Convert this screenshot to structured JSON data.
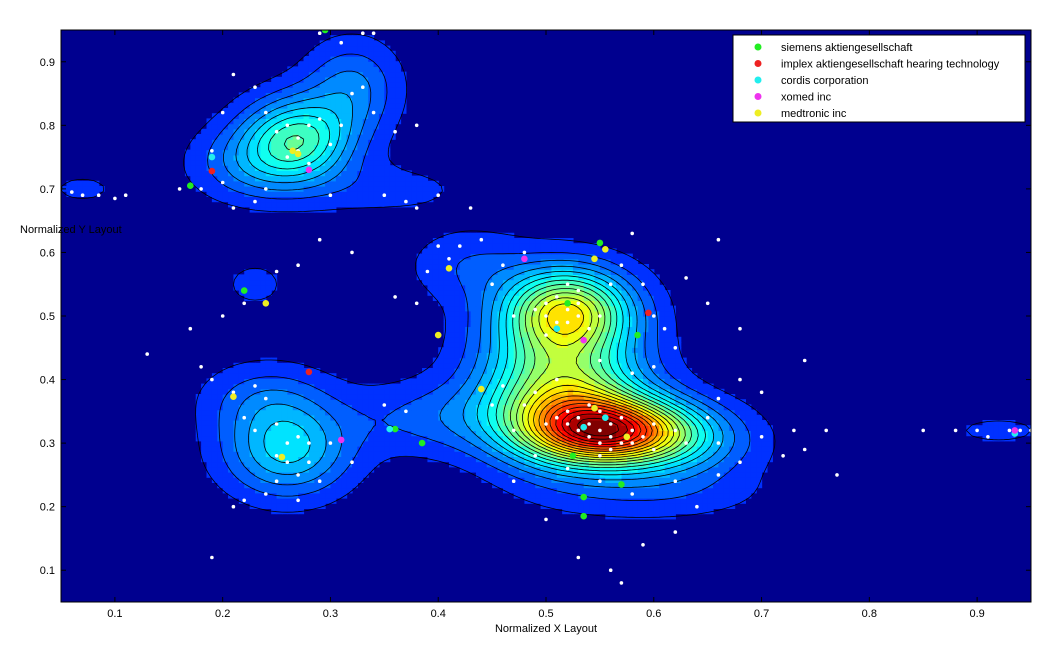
{
  "chart_data": {
    "type": "contour-scatter",
    "xlabel": "Normalized X Layout",
    "ylabel": "Normalized Y Layout",
    "xlim": [
      0.05,
      0.95
    ],
    "ylim": [
      0.05,
      0.95
    ],
    "x_ticks": [
      0.1,
      0.2,
      0.3,
      0.4,
      0.5,
      0.6,
      0.7,
      0.8,
      0.9
    ],
    "y_ticks": [
      0.1,
      0.2,
      0.3,
      0.4,
      0.5,
      0.6,
      0.7,
      0.8,
      0.9
    ],
    "x_tick_labels": [
      "0.1",
      "0.2",
      "0.3",
      "0.4",
      "0.5",
      "0.6",
      "0.7",
      "0.8",
      "0.9"
    ],
    "y_tick_labels": [
      "0.1",
      "0.2",
      "0.3",
      "0.4",
      "0.5",
      "0.6",
      "0.7",
      "0.8",
      "0.9"
    ],
    "legend_position": "top-right",
    "density_peaks": [
      {
        "x": 0.56,
        "y": 0.32,
        "height": 1.0,
        "sx": 0.05,
        "sy": 0.035
      },
      {
        "x": 0.52,
        "y": 0.35,
        "height": 0.55,
        "sx": 0.05,
        "sy": 0.06
      },
      {
        "x": 0.52,
        "y": 0.51,
        "height": 0.72,
        "sx": 0.04,
        "sy": 0.045
      },
      {
        "x": 0.51,
        "y": 0.43,
        "height": 0.38,
        "sx": 0.05,
        "sy": 0.07
      },
      {
        "x": 0.62,
        "y": 0.3,
        "height": 0.25,
        "sx": 0.05,
        "sy": 0.04
      },
      {
        "x": 0.27,
        "y": 0.78,
        "height": 0.5,
        "sx": 0.035,
        "sy": 0.045
      },
      {
        "x": 0.23,
        "y": 0.74,
        "height": 0.2,
        "sx": 0.04,
        "sy": 0.04
      },
      {
        "x": 0.32,
        "y": 0.86,
        "height": 0.22,
        "sx": 0.03,
        "sy": 0.05
      },
      {
        "x": 0.26,
        "y": 0.29,
        "height": 0.38,
        "sx": 0.04,
        "sy": 0.05
      },
      {
        "x": 0.24,
        "y": 0.37,
        "height": 0.15,
        "sx": 0.04,
        "sy": 0.04
      },
      {
        "x": 0.07,
        "y": 0.7,
        "height": 0.09,
        "sx": 0.02,
        "sy": 0.015
      },
      {
        "x": 0.92,
        "y": 0.32,
        "height": 0.09,
        "sx": 0.03,
        "sy": 0.015
      },
      {
        "x": 0.23,
        "y": 0.55,
        "height": 0.09,
        "sx": 0.02,
        "sy": 0.025
      },
      {
        "x": 0.43,
        "y": 0.58,
        "height": 0.12,
        "sx": 0.04,
        "sy": 0.04
      },
      {
        "x": 0.4,
        "y": 0.34,
        "height": 0.15,
        "sx": 0.06,
        "sy": 0.04
      },
      {
        "x": 0.6,
        "y": 0.22,
        "height": 0.1,
        "sx": 0.07,
        "sy": 0.03
      },
      {
        "x": 0.35,
        "y": 0.7,
        "height": 0.08,
        "sx": 0.06,
        "sy": 0.03
      }
    ],
    "background_points": [
      [
        0.07,
        0.69
      ],
      [
        0.06,
        0.695
      ],
      [
        0.085,
        0.69
      ],
      [
        0.1,
        0.685
      ],
      [
        0.18,
        0.7
      ],
      [
        0.2,
        0.71
      ],
      [
        0.19,
        0.76
      ],
      [
        0.2,
        0.82
      ],
      [
        0.21,
        0.88
      ],
      [
        0.23,
        0.86
      ],
      [
        0.24,
        0.82
      ],
      [
        0.25,
        0.79
      ],
      [
        0.26,
        0.8
      ],
      [
        0.27,
        0.78
      ],
      [
        0.28,
        0.8
      ],
      [
        0.29,
        0.81
      ],
      [
        0.27,
        0.76
      ],
      [
        0.26,
        0.75
      ],
      [
        0.28,
        0.74
      ],
      [
        0.3,
        0.77
      ],
      [
        0.31,
        0.8
      ],
      [
        0.32,
        0.85
      ],
      [
        0.33,
        0.86
      ],
      [
        0.31,
        0.93
      ],
      [
        0.33,
        0.945
      ],
      [
        0.34,
        0.945
      ],
      [
        0.29,
        0.945
      ],
      [
        0.34,
        0.82
      ],
      [
        0.36,
        0.79
      ],
      [
        0.38,
        0.8
      ],
      [
        0.24,
        0.7
      ],
      [
        0.23,
        0.68
      ],
      [
        0.3,
        0.69
      ],
      [
        0.35,
        0.69
      ],
      [
        0.37,
        0.68
      ],
      [
        0.38,
        0.67
      ],
      [
        0.29,
        0.62
      ],
      [
        0.32,
        0.6
      ],
      [
        0.25,
        0.57
      ],
      [
        0.27,
        0.58
      ],
      [
        0.22,
        0.52
      ],
      [
        0.2,
        0.5
      ],
      [
        0.17,
        0.48
      ],
      [
        0.13,
        0.44
      ],
      [
        0.18,
        0.42
      ],
      [
        0.19,
        0.4
      ],
      [
        0.21,
        0.38
      ],
      [
        0.23,
        0.39
      ],
      [
        0.24,
        0.37
      ],
      [
        0.22,
        0.34
      ],
      [
        0.23,
        0.32
      ],
      [
        0.25,
        0.33
      ],
      [
        0.26,
        0.3
      ],
      [
        0.27,
        0.31
      ],
      [
        0.28,
        0.3
      ],
      [
        0.25,
        0.28
      ],
      [
        0.26,
        0.27
      ],
      [
        0.27,
        0.25
      ],
      [
        0.28,
        0.27
      ],
      [
        0.25,
        0.24
      ],
      [
        0.24,
        0.22
      ],
      [
        0.27,
        0.21
      ],
      [
        0.29,
        0.24
      ],
      [
        0.3,
        0.3
      ],
      [
        0.32,
        0.27
      ],
      [
        0.22,
        0.21
      ],
      [
        0.19,
        0.12
      ],
      [
        0.21,
        0.2
      ],
      [
        0.35,
        0.36
      ],
      [
        0.37,
        0.35
      ],
      [
        0.36,
        0.53
      ],
      [
        0.38,
        0.52
      ],
      [
        0.39,
        0.57
      ],
      [
        0.41,
        0.59
      ],
      [
        0.4,
        0.61
      ],
      [
        0.42,
        0.61
      ],
      [
        0.44,
        0.62
      ],
      [
        0.46,
        0.58
      ],
      [
        0.48,
        0.6
      ],
      [
        0.45,
        0.55
      ],
      [
        0.47,
        0.5
      ],
      [
        0.49,
        0.51
      ],
      [
        0.5,
        0.52
      ],
      [
        0.5,
        0.5
      ],
      [
        0.51,
        0.53
      ],
      [
        0.52,
        0.51
      ],
      [
        0.51,
        0.49
      ],
      [
        0.53,
        0.52
      ],
      [
        0.52,
        0.49
      ],
      [
        0.5,
        0.47
      ],
      [
        0.53,
        0.5
      ],
      [
        0.54,
        0.48
      ],
      [
        0.55,
        0.5
      ],
      [
        0.53,
        0.54
      ],
      [
        0.52,
        0.55
      ],
      [
        0.56,
        0.55
      ],
      [
        0.57,
        0.58
      ],
      [
        0.59,
        0.55
      ],
      [
        0.6,
        0.5
      ],
      [
        0.61,
        0.48
      ],
      [
        0.62,
        0.45
      ],
      [
        0.6,
        0.42
      ],
      [
        0.58,
        0.41
      ],
      [
        0.55,
        0.43
      ],
      [
        0.51,
        0.4
      ],
      [
        0.49,
        0.38
      ],
      [
        0.48,
        0.36
      ],
      [
        0.46,
        0.39
      ],
      [
        0.45,
        0.36
      ],
      [
        0.47,
        0.32
      ],
      [
        0.5,
        0.33
      ],
      [
        0.51,
        0.34
      ],
      [
        0.52,
        0.33
      ],
      [
        0.53,
        0.32
      ],
      [
        0.54,
        0.33
      ],
      [
        0.55,
        0.32
      ],
      [
        0.56,
        0.31
      ],
      [
        0.55,
        0.3
      ],
      [
        0.54,
        0.31
      ],
      [
        0.53,
        0.34
      ],
      [
        0.52,
        0.35
      ],
      [
        0.54,
        0.36
      ],
      [
        0.55,
        0.35
      ],
      [
        0.56,
        0.33
      ],
      [
        0.57,
        0.34
      ],
      [
        0.58,
        0.32
      ],
      [
        0.57,
        0.3
      ],
      [
        0.56,
        0.29
      ],
      [
        0.55,
        0.28
      ],
      [
        0.58,
        0.3
      ],
      [
        0.59,
        0.31
      ],
      [
        0.6,
        0.33
      ],
      [
        0.6,
        0.29
      ],
      [
        0.62,
        0.32
      ],
      [
        0.63,
        0.3
      ],
      [
        0.65,
        0.34
      ],
      [
        0.66,
        0.3
      ],
      [
        0.68,
        0.27
      ],
      [
        0.7,
        0.31
      ],
      [
        0.72,
        0.28
      ],
      [
        0.73,
        0.32
      ],
      [
        0.74,
        0.29
      ],
      [
        0.66,
        0.25
      ],
      [
        0.62,
        0.24
      ],
      [
        0.58,
        0.22
      ],
      [
        0.55,
        0.24
      ],
      [
        0.52,
        0.26
      ],
      [
        0.49,
        0.28
      ],
      [
        0.47,
        0.24
      ],
      [
        0.5,
        0.18
      ],
      [
        0.53,
        0.12
      ],
      [
        0.56,
        0.1
      ],
      [
        0.57,
        0.08
      ],
      [
        0.59,
        0.14
      ],
      [
        0.62,
        0.16
      ],
      [
        0.64,
        0.2
      ],
      [
        0.66,
        0.37
      ],
      [
        0.68,
        0.4
      ],
      [
        0.7,
        0.38
      ],
      [
        0.74,
        0.43
      ],
      [
        0.76,
        0.32
      ],
      [
        0.77,
        0.25
      ],
      [
        0.68,
        0.48
      ],
      [
        0.65,
        0.52
      ],
      [
        0.63,
        0.56
      ],
      [
        0.66,
        0.62
      ],
      [
        0.58,
        0.63
      ],
      [
        0.43,
        0.67
      ],
      [
        0.4,
        0.69
      ],
      [
        0.11,
        0.69
      ],
      [
        0.85,
        0.32
      ],
      [
        0.88,
        0.32
      ],
      [
        0.9,
        0.32
      ],
      [
        0.91,
        0.31
      ],
      [
        0.93,
        0.32
      ],
      [
        0.94,
        0.32
      ],
      [
        0.95,
        0.32
      ],
      [
        0.97,
        0.32
      ],
      [
        0.16,
        0.7
      ],
      [
        0.21,
        0.67
      ]
    ],
    "series": [
      {
        "name": "siemens aktiengesellschaft",
        "color": "#22ee22",
        "points": [
          [
            0.17,
            0.705
          ],
          [
            0.22,
            0.54
          ],
          [
            0.295,
            0.95
          ],
          [
            0.36,
            0.322
          ],
          [
            0.385,
            0.3
          ],
          [
            0.52,
            0.52
          ],
          [
            0.55,
            0.615
          ],
          [
            0.585,
            0.47
          ],
          [
            0.525,
            0.28
          ],
          [
            0.57,
            0.235
          ],
          [
            0.535,
            0.215
          ],
          [
            0.535,
            0.185
          ]
        ]
      },
      {
        "name": "implex aktiengesellschaft hearing technology",
        "color": "#ee2222",
        "points": [
          [
            0.19,
            0.728
          ],
          [
            0.28,
            0.412
          ],
          [
            0.595,
            0.505
          ]
        ]
      },
      {
        "name": "cordis corporation",
        "color": "#22eeee",
        "points": [
          [
            0.19,
            0.75
          ],
          [
            0.355,
            0.322
          ],
          [
            0.51,
            0.48
          ],
          [
            0.535,
            0.325
          ],
          [
            0.555,
            0.34
          ],
          [
            0.935,
            0.315
          ]
        ]
      },
      {
        "name": "xomed inc",
        "color": "#ee33ee",
        "points": [
          [
            0.28,
            0.73
          ],
          [
            0.31,
            0.305
          ],
          [
            0.48,
            0.59
          ],
          [
            0.535,
            0.462
          ],
          [
            0.935,
            0.32
          ]
        ]
      },
      {
        "name": "medtronic inc",
        "color": "#eeee22",
        "points": [
          [
            0.21,
            0.373
          ],
          [
            0.24,
            0.52
          ],
          [
            0.255,
            0.278
          ],
          [
            0.265,
            0.76
          ],
          [
            0.27,
            0.755
          ],
          [
            0.4,
            0.47
          ],
          [
            0.41,
            0.575
          ],
          [
            0.44,
            0.385
          ],
          [
            0.545,
            0.59
          ],
          [
            0.555,
            0.605
          ],
          [
            0.545,
            0.355
          ],
          [
            0.575,
            0.31
          ]
        ]
      }
    ]
  }
}
